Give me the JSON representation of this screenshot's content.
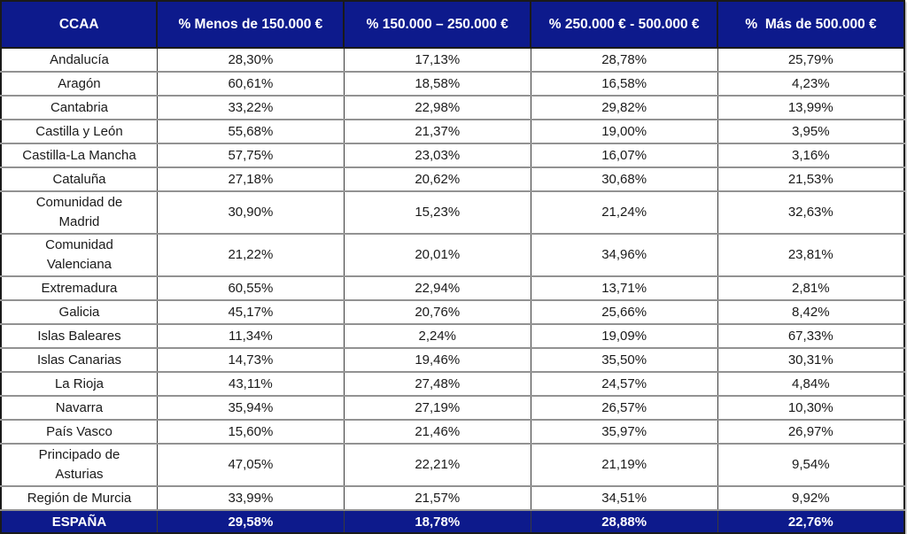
{
  "colors": {
    "header_bg": "#0d1a8c",
    "header_text": "#ffffff",
    "body_text": "#1a1a1a",
    "row_separator": "#929292",
    "outer_border": "#1a1a1a"
  },
  "table": {
    "columns": [
      "CCAA",
      "% Menos de 150.000 €",
      "% 150.000 – 250.000 €",
      "% 250.000 € - 500.000 €",
      "%  Más de 500.000 €"
    ],
    "rows": [
      {
        "name": "Andalucía",
        "values": [
          "28,30%",
          "17,13%",
          "28,78%",
          "25,79%"
        ]
      },
      {
        "name": "Aragón",
        "values": [
          "60,61%",
          "18,58%",
          "16,58%",
          "4,23%"
        ]
      },
      {
        "name": "Cantabria",
        "values": [
          "33,22%",
          "22,98%",
          "29,82%",
          "13,99%"
        ]
      },
      {
        "name": "Castilla y León",
        "values": [
          "55,68%",
          "21,37%",
          "19,00%",
          "3,95%"
        ]
      },
      {
        "name": "Castilla-La Mancha",
        "values": [
          "57,75%",
          "23,03%",
          "16,07%",
          "3,16%"
        ]
      },
      {
        "name": "Cataluña",
        "values": [
          "27,18%",
          "20,62%",
          "30,68%",
          "21,53%"
        ]
      },
      {
        "name": "Comunidad de\nMadrid",
        "values": [
          "30,90%",
          "15,23%",
          "21,24%",
          "32,63%"
        ]
      },
      {
        "name": "Comunidad\nValenciana",
        "values": [
          "21,22%",
          "20,01%",
          "34,96%",
          "23,81%"
        ]
      },
      {
        "name": "Extremadura",
        "values": [
          "60,55%",
          "22,94%",
          "13,71%",
          "2,81%"
        ]
      },
      {
        "name": "Galicia",
        "values": [
          "45,17%",
          "20,76%",
          "25,66%",
          "8,42%"
        ]
      },
      {
        "name": "Islas Baleares",
        "values": [
          "11,34%",
          "2,24%",
          "19,09%",
          "67,33%"
        ]
      },
      {
        "name": "Islas Canarias",
        "values": [
          "14,73%",
          "19,46%",
          "35,50%",
          "30,31%"
        ]
      },
      {
        "name": "La Rioja",
        "values": [
          "43,11%",
          "27,48%",
          "24,57%",
          "4,84%"
        ]
      },
      {
        "name": "Navarra",
        "values": [
          "35,94%",
          "27,19%",
          "26,57%",
          "10,30%"
        ]
      },
      {
        "name": "País Vasco",
        "values": [
          "15,60%",
          "21,46%",
          "35,97%",
          "26,97%"
        ]
      },
      {
        "name": "Principado de\nAsturias",
        "values": [
          "47,05%",
          "22,21%",
          "21,19%",
          "9,54%"
        ]
      },
      {
        "name": "Región de Murcia",
        "values": [
          "33,99%",
          "21,57%",
          "34,51%",
          "9,92%"
        ]
      }
    ],
    "footer": {
      "name": "ESPAÑA",
      "values": [
        "29,58%",
        "18,78%",
        "28,88%",
        "22,76%"
      ]
    }
  },
  "chart_data": {
    "type": "table",
    "title": "Distribución porcentual por CCAA y tramo de precio",
    "columns": [
      "CCAA",
      "% Menos de 150.000 €",
      "% 150.000 – 250.000 €",
      "% 250.000 € - 500.000 €",
      "%  Más de 500.000 €"
    ],
    "categories": [
      "Andalucía",
      "Aragón",
      "Cantabria",
      "Castilla y León",
      "Castilla-La Mancha",
      "Cataluña",
      "Comunidad de Madrid",
      "Comunidad Valenciana",
      "Extremadura",
      "Galicia",
      "Islas Baleares",
      "Islas Canarias",
      "La Rioja",
      "Navarra",
      "País Vasco",
      "Principado de Asturias",
      "Región de Murcia"
    ],
    "series": [
      {
        "name": "% Menos de 150.000 €",
        "values": [
          28.3,
          60.61,
          33.22,
          55.68,
          57.75,
          27.18,
          30.9,
          21.22,
          60.55,
          45.17,
          11.34,
          14.73,
          43.11,
          35.94,
          15.6,
          47.05,
          33.99
        ]
      },
      {
        "name": "% 150.000 – 250.000 €",
        "values": [
          17.13,
          18.58,
          22.98,
          21.37,
          23.03,
          20.62,
          15.23,
          20.01,
          22.94,
          20.76,
          2.24,
          19.46,
          27.48,
          27.19,
          21.46,
          22.21,
          21.57
        ]
      },
      {
        "name": "% 250.000 € - 500.000 €",
        "values": [
          28.78,
          16.58,
          29.82,
          19.0,
          16.07,
          30.68,
          21.24,
          34.96,
          13.71,
          25.66,
          19.09,
          35.5,
          24.57,
          26.57,
          35.97,
          21.19,
          34.51
        ]
      },
      {
        "name": "% Más de 500.000 €",
        "values": [
          25.79,
          4.23,
          13.99,
          3.95,
          3.16,
          21.53,
          32.63,
          23.81,
          2.81,
          8.42,
          67.33,
          30.31,
          4.84,
          10.3,
          26.97,
          9.54,
          9.92
        ]
      }
    ],
    "totals_row": {
      "name": "ESPAÑA",
      "values": [
        29.58,
        18.78,
        28.88,
        22.76
      ]
    },
    "units": "percent",
    "decimal_separator": ","
  }
}
